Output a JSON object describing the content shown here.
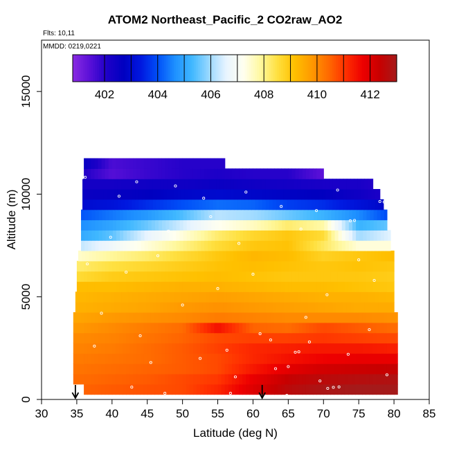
{
  "chart_data": {
    "type": "heatmap",
    "title": "ATOM2 Northeast_Pacific_2 CO2raw_AO2",
    "flights_note": "Flts: 10,11",
    "date_note": "MMDD: 0219,0221",
    "xlabel": "Latitude (deg N)",
    "ylabel": "Altitude (m)",
    "xlim": [
      30,
      85
    ],
    "ylim": [
      0,
      17500
    ],
    "x_ticks": [
      "30",
      "35",
      "40",
      "45",
      "50",
      "55",
      "60",
      "65",
      "70",
      "75",
      "80",
      "85"
    ],
    "y_ticks": [
      "0",
      "5000",
      "10000",
      "15000"
    ],
    "colorbar": {
      "range": [
        400.8,
        413.0
      ],
      "tick_labels": [
        "402",
        "404",
        "406",
        "408",
        "410",
        "412"
      ],
      "tick_values": [
        402,
        404,
        406,
        408,
        410,
        412
      ],
      "colors": [
        "#8a2be2",
        "#5a10d8",
        "#1e00c8",
        "#0000c0",
        "#0018e0",
        "#0050f8",
        "#1e90ff",
        "#40b8ff",
        "#9ad8ff",
        "#e8f4ff",
        "#fffff0",
        "#fff8a0",
        "#ffe040",
        "#ffc000",
        "#ff9a00",
        "#ff6a00",
        "#ff3000",
        "#ee0000",
        "#c80000",
        "#a51a1a"
      ]
    },
    "altitude_bins_m": [
      500,
      1000,
      1500,
      2000,
      2500,
      3000,
      3500,
      4000,
      4500,
      5000,
      5500,
      6000,
      6500,
      7000,
      7500,
      8000,
      8500,
      9000,
      9500,
      10000,
      10500,
      11000,
      11500
    ],
    "latitude_ranges": [
      [
        36,
        80.5
      ],
      [
        34.5,
        80.5
      ],
      [
        34.5,
        80.5
      ],
      [
        34.5,
        80.5
      ],
      [
        34.5,
        80.5
      ],
      [
        34.5,
        80.5
      ],
      [
        34.5,
        80.5
      ],
      [
        34.5,
        80.5
      ],
      [
        34.8,
        80
      ],
      [
        34.8,
        80
      ],
      [
        35,
        80
      ],
      [
        35,
        80
      ],
      [
        35,
        80
      ],
      [
        35.2,
        80
      ],
      [
        35.6,
        79.5
      ],
      [
        35.6,
        79.5
      ],
      [
        35.6,
        79
      ],
      [
        35.6,
        79
      ],
      [
        35.8,
        78.5
      ],
      [
        35.8,
        78
      ],
      [
        35.8,
        77
      ],
      [
        36,
        70
      ],
      [
        36,
        56
      ]
    ],
    "co2_anchor_latitudes": [
      35,
      40,
      45,
      50,
      55,
      60,
      65,
      70,
      75,
      80
    ],
    "co2_ppm": [
      [
        410.5,
        410.6,
        410.7,
        410.8,
        411.2,
        412.0,
        412.6,
        412.9,
        413.0,
        413.0
      ],
      [
        410.4,
        410.5,
        410.6,
        410.8,
        411.0,
        411.8,
        412.4,
        412.6,
        412.7,
        412.8
      ],
      [
        410.3,
        410.4,
        410.5,
        410.6,
        410.8,
        411.4,
        411.9,
        412.2,
        412.3,
        412.4
      ],
      [
        410.2,
        410.3,
        410.4,
        410.6,
        410.8,
        411.2,
        411.5,
        411.7,
        411.8,
        411.8
      ],
      [
        410.1,
        410.2,
        410.4,
        410.6,
        410.9,
        411.2,
        411.3,
        411.4,
        411.4,
        411.3
      ],
      [
        410.0,
        410.1,
        410.3,
        410.5,
        410.8,
        410.9,
        410.9,
        411.0,
        410.9,
        410.8
      ],
      [
        409.8,
        410.0,
        410.2,
        410.4,
        411.5,
        410.5,
        410.4,
        410.8,
        410.6,
        410.4
      ],
      [
        409.6,
        409.8,
        409.9,
        410.0,
        410.2,
        410.1,
        410.0,
        410.0,
        410.0,
        409.9
      ],
      [
        409.4,
        409.5,
        409.6,
        409.8,
        409.9,
        409.8,
        409.7,
        409.6,
        409.5,
        409.5
      ],
      [
        409.3,
        409.4,
        409.5,
        409.6,
        409.7,
        409.6,
        409.5,
        409.4,
        409.4,
        409.3
      ],
      [
        409.2,
        409.2,
        409.3,
        409.4,
        409.4,
        409.3,
        409.2,
        409.2,
        409.1,
        409.0
      ],
      [
        408.6,
        408.9,
        409.0,
        409.1,
        409.2,
        409.1,
        409.0,
        409.0,
        409.0,
        408.9
      ],
      [
        408.2,
        408.5,
        408.7,
        408.9,
        409.1,
        409.2,
        409.1,
        409.0,
        409.1,
        409.0
      ],
      [
        407.5,
        407.9,
        408.2,
        408.6,
        409.0,
        409.3,
        409.2,
        408.8,
        409.0,
        409.2
      ],
      [
        406.2,
        406.8,
        407.4,
        408.0,
        408.6,
        409.0,
        409.1,
        408.3,
        407.4,
        407.4
      ],
      [
        405.0,
        405.5,
        406.6,
        407.4,
        408.2,
        408.7,
        409.0,
        408.6,
        406.0,
        406.6
      ],
      [
        404.6,
        405.0,
        405.6,
        406.4,
        407.2,
        407.6,
        408.2,
        407.8,
        405.2,
        405.6
      ],
      [
        404.0,
        404.4,
        404.8,
        405.4,
        406.2,
        406.0,
        405.6,
        405.2,
        404.6,
        403.8
      ],
      [
        403.0,
        403.2,
        403.6,
        404.0,
        404.3,
        404.2,
        403.8,
        403.6,
        403.2,
        402.8
      ],
      [
        402.5,
        402.6,
        402.7,
        402.9,
        403.0,
        402.9,
        402.8,
        402.7,
        402.4,
        402.0
      ],
      [
        402.3,
        402.3,
        402.4,
        402.4,
        402.5,
        402.4,
        402.3,
        402.2,
        402.2,
        401.8
      ],
      [
        402.2,
        401.5,
        401.8,
        402.0,
        402.1,
        402.0,
        402.0,
        401.4,
        401.4,
        401.4
      ],
      [
        402.8,
        401.6,
        401.8,
        402.0,
        402.0,
        402.0,
        402.0,
        402.0,
        402.0,
        402.0
      ]
    ],
    "sample_points": [
      [
        36.8,
        11880
      ],
      [
        37.6,
        11900
      ],
      [
        38.2,
        11880
      ],
      [
        39.0,
        11850
      ],
      [
        39.4,
        11860
      ],
      [
        35.8,
        10800
      ],
      [
        36.2,
        10820
      ],
      [
        78.0,
        9640
      ],
      [
        78.6,
        9620
      ],
      [
        79.2,
        9600
      ],
      [
        73.8,
        8700
      ],
      [
        74.4,
        8720
      ],
      [
        71.4,
        590
      ],
      [
        72.2,
        610
      ],
      [
        70.6,
        540
      ],
      [
        66.0,
        2300
      ],
      [
        66.5,
        2320
      ],
      [
        61.0,
        3200
      ],
      [
        56.3,
        2400
      ],
      [
        65.0,
        1600
      ],
      [
        68.0,
        2800
      ],
      [
        63.2,
        1500
      ],
      [
        45.5,
        1800
      ],
      [
        42.0,
        6200
      ],
      [
        48.0,
        8200
      ],
      [
        53.0,
        9800
      ],
      [
        58.0,
        7600
      ],
      [
        69.0,
        9200
      ],
      [
        75.0,
        6800
      ],
      [
        38.5,
        4200
      ],
      [
        44.0,
        3100
      ],
      [
        50.0,
        4600
      ],
      [
        55.0,
        5400
      ],
      [
        60.0,
        6100
      ],
      [
        64.0,
        9400
      ],
      [
        72.0,
        10200
      ],
      [
        41.0,
        9900
      ],
      [
        46.5,
        7000
      ],
      [
        52.5,
        2000
      ],
      [
        57.5,
        1100
      ],
      [
        62.5,
        2900
      ],
      [
        67.5,
        4000
      ],
      [
        76.5,
        3400
      ],
      [
        79.0,
        1200
      ],
      [
        36.5,
        6600
      ],
      [
        37.5,
        2600
      ],
      [
        39.8,
        7900
      ],
      [
        43.5,
        10600
      ],
      [
        49.0,
        10400
      ],
      [
        54.0,
        8900
      ],
      [
        59.0,
        10100
      ],
      [
        66.8,
        8300
      ],
      [
        70.5,
        5100
      ],
      [
        73.5,
        2200
      ],
      [
        77.2,
        5800
      ],
      [
        64.8,
        200
      ],
      [
        56.8,
        300
      ],
      [
        47.5,
        300
      ],
      [
        42.8,
        600
      ],
      [
        69.5,
        900
      ]
    ],
    "markers": [
      {
        "latitude": 34.8,
        "label": "↓"
      },
      {
        "latitude": 61.3,
        "label": "↓"
      }
    ]
  }
}
